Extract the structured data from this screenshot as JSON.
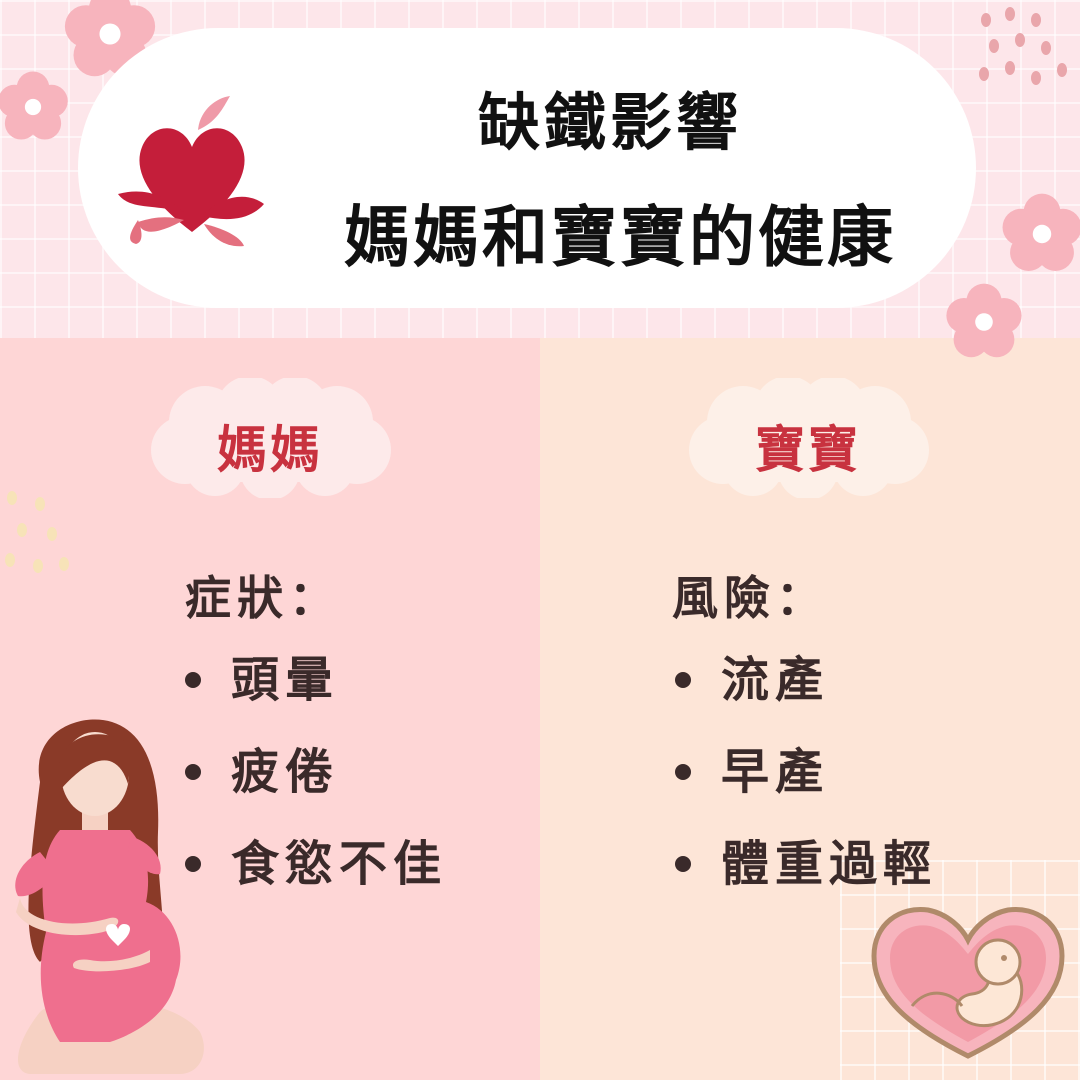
{
  "title": {
    "line1": "缺鐵影響",
    "line2": "媽媽和寶寶的健康"
  },
  "mom": {
    "label": "媽媽",
    "heading": "症狀：",
    "items": [
      "頭暈",
      "疲倦",
      "食慾不佳"
    ]
  },
  "baby": {
    "label": "寶寶",
    "heading": "風險：",
    "items": [
      "流產",
      "早產",
      "體重過輕"
    ]
  },
  "colors": {
    "top_background": "#fde6ea",
    "mom_panel": "#fed6d6",
    "baby_panel": "#fde5d7",
    "label_red": "#c8323f",
    "heart_red": "#c41e3a",
    "text_dark": "#3a2a2a"
  },
  "icons": [
    "heart-splash-icon",
    "flower-icon",
    "pregnant-woman-illustration",
    "fetus-in-heart-illustration"
  ]
}
